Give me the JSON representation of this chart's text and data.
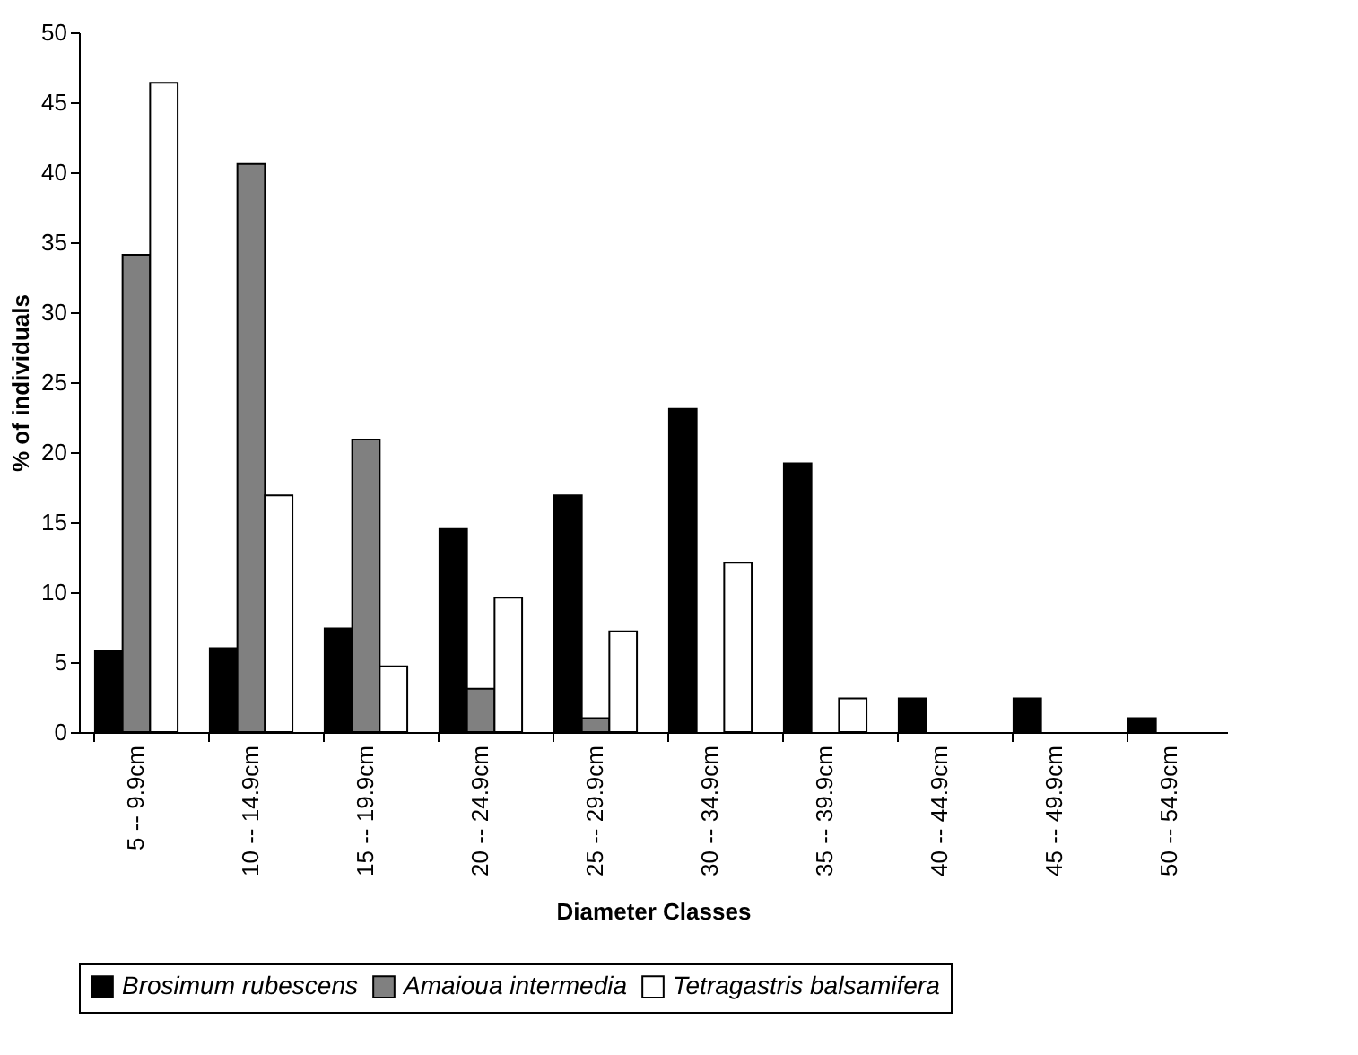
{
  "chart_data": {
    "type": "bar",
    "xlabel": "Diameter Classes",
    "ylabel": "% of individuals",
    "categories": [
      "5 -- 9.9cm",
      "10 -- 14.9cm",
      "15 -- 19.9cm",
      "20 -- 24.9cm",
      "25 -- 29.9cm",
      "30 -- 34.9cm",
      "35 -- 39.9cm",
      "40 -- 44.9cm",
      "45 -- 49.9cm",
      "50 -- 54.9cm"
    ],
    "series": [
      {
        "name": "Brosimum rubescens",
        "color": "#000000",
        "values": [
          5.8,
          6.0,
          7.4,
          14.5,
          16.9,
          23.1,
          19.2,
          2.4,
          2.4,
          1.0
        ]
      },
      {
        "name": "Amaioua intermedia",
        "color": "#808080",
        "values": [
          34.1,
          40.6,
          20.9,
          3.1,
          1.0,
          null,
          null,
          null,
          null,
          null
        ]
      },
      {
        "name": "Tetragastris balsamifera",
        "color": "#ffffff",
        "values": [
          46.4,
          16.9,
          4.7,
          9.6,
          7.2,
          12.1,
          2.4,
          null,
          null,
          null
        ]
      }
    ],
    "ylim": [
      0,
      50
    ],
    "yticks": [
      0,
      5,
      10,
      15,
      20,
      25,
      30,
      35,
      40,
      45,
      50
    ],
    "grid": false,
    "legend": "bottom"
  }
}
